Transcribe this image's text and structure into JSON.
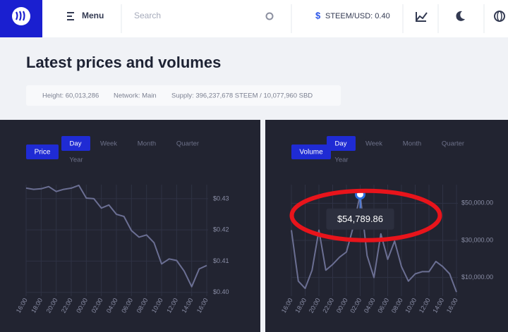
{
  "header": {
    "menu": "Menu",
    "search": "Search",
    "price": "STEEM/USD: 0.40"
  },
  "page": {
    "title": "Latest prices and volumes",
    "stats": [
      "Height: 60,013,286",
      "Network: Main",
      "Supply: 396,237,678 STEEM / 10,077,960 SBD"
    ]
  },
  "chart_data": [
    {
      "type": "line",
      "label": "Price",
      "tabs": [
        "Day",
        "Week",
        "Month",
        "Quarter",
        "Year"
      ],
      "color": "#6b6f93",
      "categories": [
        "16:00",
        null,
        "18:00",
        null,
        "20:00",
        null,
        "22:00",
        null,
        "00:00",
        null,
        "02:00",
        null,
        "04:00",
        null,
        "06:00",
        null,
        "08:00",
        null,
        "10:00",
        null,
        "12:00",
        null,
        "14:00",
        null,
        "16:00"
      ],
      "values": [
        0.4334,
        0.433,
        0.4332,
        0.4339,
        0.4323,
        0.433,
        0.4334,
        0.4343,
        0.4302,
        0.43,
        0.427,
        0.428,
        0.425,
        0.4243,
        0.4198,
        0.4177,
        0.4184,
        0.4159,
        0.4091,
        0.4107,
        0.4102,
        0.4068,
        0.4018,
        0.4075,
        0.4086
      ],
      "ylim": [
        0.3988,
        0.4345
      ],
      "yticks": [
        {
          "value": 0.4,
          "label": "$0.40"
        },
        {
          "value": 0.41,
          "label": "$0.41"
        },
        {
          "value": 0.42,
          "label": "$0.42"
        },
        {
          "value": 0.43,
          "label": "$0.43"
        }
      ],
      "grid": true
    },
    {
      "type": "line",
      "label": "Volume",
      "tabs": [
        "Day",
        "Week",
        "Month",
        "Quarter",
        "Year"
      ],
      "color": "#6b6f93",
      "categories": [
        "16:00",
        null,
        "18:00",
        null,
        "20:00",
        null,
        "22:00",
        null,
        "00:00",
        null,
        "02:00",
        null,
        "04:00",
        null,
        "06:00",
        null,
        "08:00",
        null,
        "10:00",
        null,
        "12:00",
        null,
        "14:00",
        null,
        "16:00"
      ],
      "values": [
        35490,
        8040,
        4120,
        13920,
        35490,
        13920,
        17060,
        20980,
        23730,
        37450,
        54789.86,
        21760,
        10000,
        33530,
        19800,
        29610,
        15880,
        8040,
        11960,
        13140,
        13140,
        18630,
        15880,
        11960,
        2160
      ],
      "value_labels": [
        null,
        null,
        null,
        null,
        null,
        null,
        null,
        null,
        null,
        null,
        "$54,789.86",
        null,
        null,
        null,
        null,
        null,
        null,
        null,
        null,
        null,
        null,
        null,
        null,
        null,
        null
      ],
      "ylim": [
        0,
        60000
      ],
      "yticks": [
        {
          "value": 10000,
          "label": "$10,000.00"
        },
        {
          "value": 30000,
          "label": "$30,000.00"
        },
        {
          "value": 50000,
          "label": "$50,000.00"
        }
      ],
      "grid": true
    }
  ]
}
